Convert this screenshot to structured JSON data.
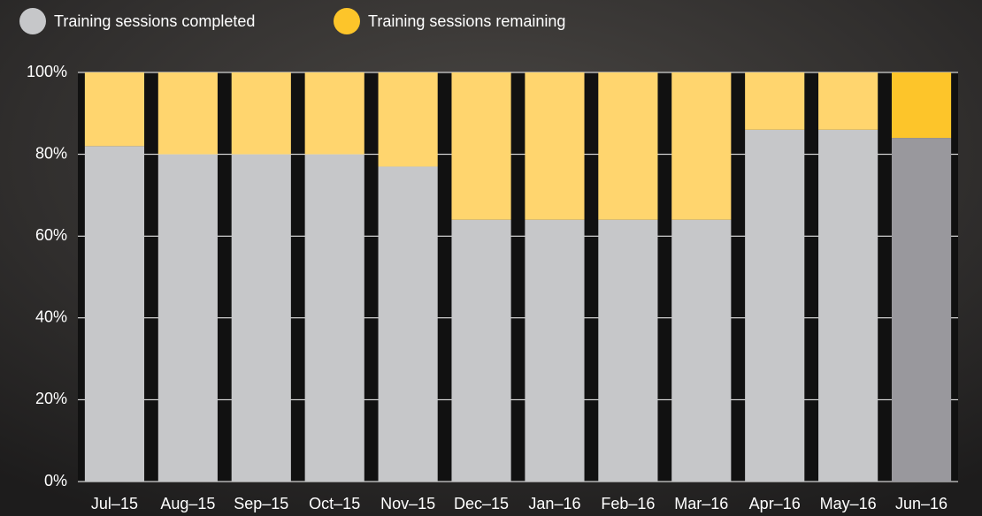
{
  "chart_data": {
    "type": "stacked_bar",
    "categories": [
      "Jul–15",
      "Aug–15",
      "Sep–15",
      "Oct–15",
      "Nov–15",
      "Dec–15",
      "Jan–16",
      "Feb–16",
      "Mar–16",
      "Apr–16",
      "May–16",
      "Jun–16"
    ],
    "series": [
      {
        "name": "Training sessions completed",
        "color": "#c6c7c9",
        "colors": [
          "#c6c7c9",
          "#c6c7c9",
          "#c6c7c9",
          "#c6c7c9",
          "#c6c7c9",
          "#c6c7c9",
          "#c6c7c9",
          "#c6c7c9",
          "#c6c7c9",
          "#c6c7c9",
          "#c6c7c9",
          "#99989d"
        ],
        "values": [
          82,
          80,
          80,
          80,
          77,
          64,
          64,
          64,
          64,
          86,
          86,
          84
        ]
      },
      {
        "name": "Training sessions remaining",
        "color": "#fdc52a",
        "colors": [
          "#ffd56e",
          "#ffd56e",
          "#ffd56e",
          "#ffd56e",
          "#ffd56e",
          "#ffd56e",
          "#ffd56e",
          "#ffd56e",
          "#ffd56e",
          "#ffd56e",
          "#ffd56e",
          "#fdc52a"
        ],
        "values": [
          18,
          20,
          20,
          20,
          23,
          36,
          36,
          36,
          36,
          14,
          14,
          16
        ]
      }
    ],
    "ylim": [
      0,
      100
    ],
    "yticks": [
      {
        "value": 0,
        "label": "0%"
      },
      {
        "value": 20,
        "label": "20%"
      },
      {
        "value": 40,
        "label": "40%"
      },
      {
        "value": 60,
        "label": "60%"
      },
      {
        "value": 80,
        "label": "80%"
      },
      {
        "value": 100,
        "label": "100%"
      }
    ],
    "grid": true,
    "legend": "top-left"
  }
}
